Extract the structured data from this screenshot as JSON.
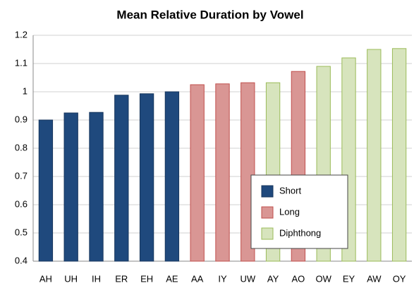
{
  "chart_data": {
    "type": "bar",
    "title": "Mean Relative Duration by Vowel",
    "categories": [
      "AH",
      "UH",
      "IH",
      "ER",
      "EH",
      "AE",
      "AA",
      "IY",
      "UW",
      "AY",
      "AO",
      "OW",
      "EY",
      "AW",
      "OY"
    ],
    "series": [
      {
        "name": "Short",
        "color": "#1f497d",
        "values": [
          0.9,
          0.925,
          0.927,
          0.988,
          0.993,
          1.0,
          null,
          null,
          null,
          null,
          null,
          null,
          null,
          null,
          null
        ]
      },
      {
        "name": "Long",
        "color": "#d99694",
        "values": [
          null,
          null,
          null,
          null,
          null,
          null,
          1.025,
          1.028,
          1.032,
          null,
          1.072,
          null,
          null,
          null,
          null
        ]
      },
      {
        "name": "Diphthong",
        "color": "#d7e4bd",
        "values": [
          null,
          null,
          null,
          null,
          null,
          null,
          null,
          null,
          null,
          1.032,
          null,
          1.09,
          1.12,
          1.15,
          1.153
        ]
      }
    ],
    "ylim": [
      0.4,
      1.2
    ],
    "yticks": [
      0.4,
      0.5,
      0.6,
      0.7,
      0.8,
      0.9,
      1,
      1.1,
      1.2
    ],
    "grid": true,
    "legend": "lower-right"
  }
}
